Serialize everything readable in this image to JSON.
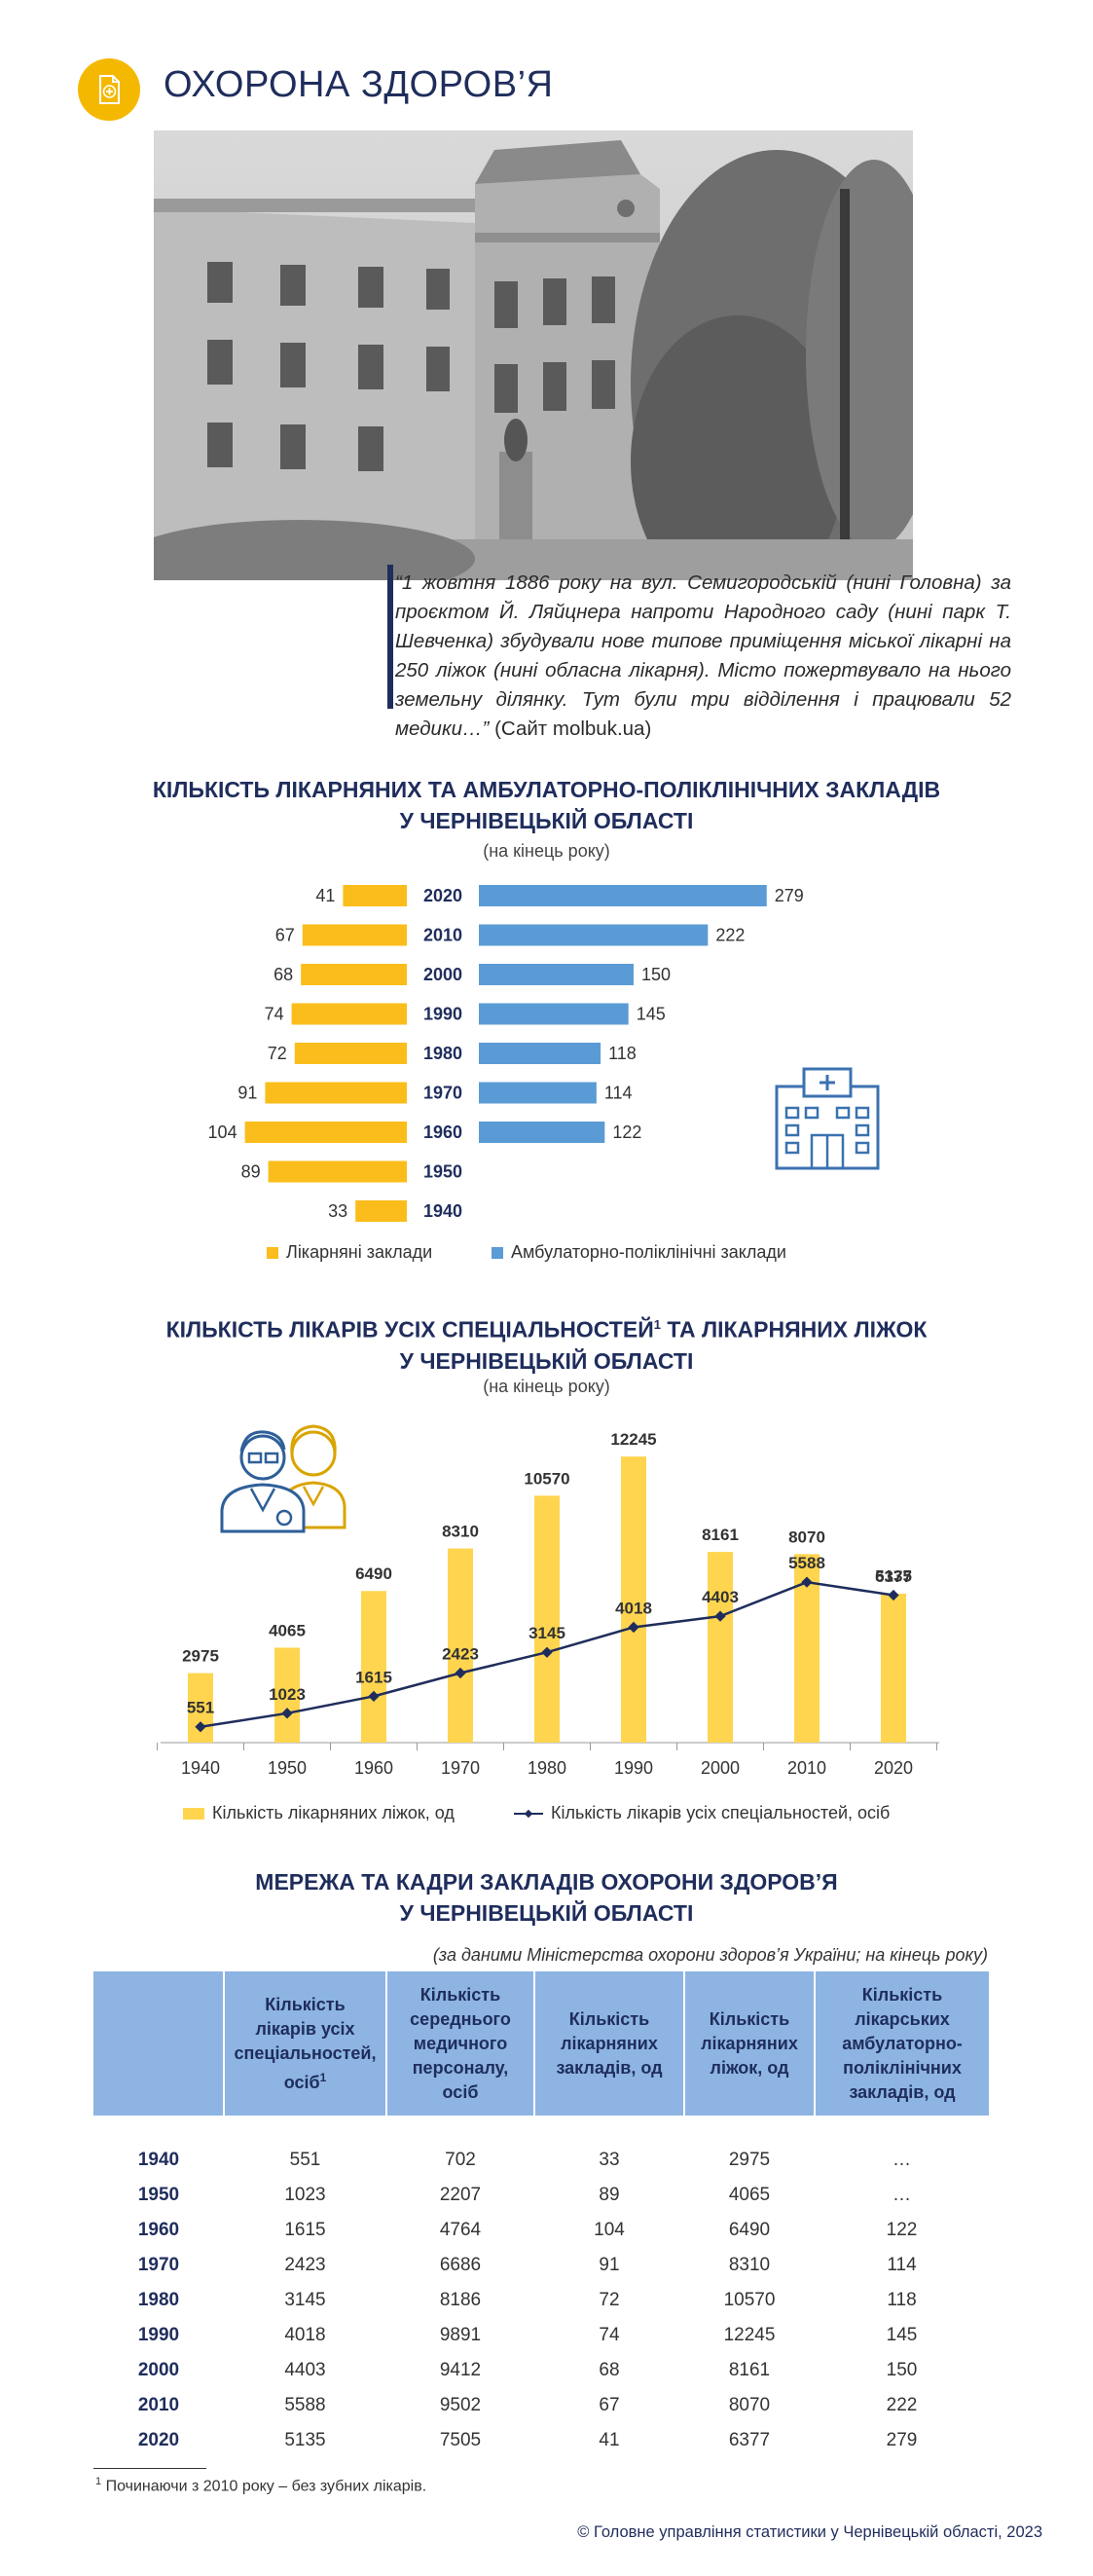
{
  "page": {
    "title": "ОХОРОНА ЗДОРОВ’Я",
    "icon": "medical-document-icon",
    "accent_color": "#f5b800",
    "navy_color": "#1f2d5c"
  },
  "quote": {
    "text": "“1 жовтня 1886 року на вул. Семигородській (нині Головна) за проєктом Й. Ляйцнера напроти Народного саду (нині парк Т. Шевченка) збудували нове типове приміщення міської лікарні на 250 ліжок (нині обласна лікарня). Місто пожертвувало на нього земельну ділянку. Тут були три відділення і працювали 52 медики…”",
    "source": "(Сайт molbuk.ua)"
  },
  "chart_data": [
    {
      "type": "bar",
      "orientation": "horizontal",
      "title": "КІЛЬКІСТЬ ЛІКАРНЯНИХ  ТА АМБУЛАТОРНО-ПОЛІКЛІНІЧНИХ ЗАКЛАДІВ",
      "title_line2": "У ЧЕРНІВЕЦЬКІЙ ОБЛАСТІ",
      "subtitle": "(на кінець року)",
      "categories": [
        "2020",
        "2010",
        "2000",
        "1990",
        "1980",
        "1970",
        "1960",
        "1950",
        "1940"
      ],
      "series": [
        {
          "name": "Лікарняні заклади",
          "color": "#fbbd1b",
          "values": [
            41,
            67,
            68,
            74,
            72,
            91,
            104,
            89,
            33
          ]
        },
        {
          "name": "Амбулаторно-поліклінічні  заклади",
          "color": "#5b9bd5",
          "values": [
            279,
            222,
            150,
            145,
            118,
            114,
            122,
            null,
            null
          ]
        }
      ],
      "legend_position": "bottom",
      "icon": "hospital-building-icon"
    },
    {
      "type": "bar",
      "title_parts": [
        "КІЛЬКІСТЬ ЛІКАРІВ УСІХ СПЕЦІАЛЬНОСТЕЙ",
        "1",
        " ТА ЛІКАРНЯНИХ ЛІЖОК"
      ],
      "title_line2": "У ЧЕРНІВЕЦЬКІЙ ОБЛАСТІ",
      "subtitle": "(на кінець року)",
      "categories": [
        "1940",
        "1950",
        "1960",
        "1970",
        "1980",
        "1990",
        "2000",
        "2010",
        "2020"
      ],
      "series": [
        {
          "name": "Кількість лікарняних ліжок, од",
          "type": "bar",
          "color": "#ffd54f",
          "values": [
            2975,
            4065,
            6490,
            8310,
            10570,
            12245,
            8161,
            8070,
            6377
          ]
        },
        {
          "name": "Кількість лікарів усіх спеціальностей, осіб",
          "type": "line",
          "color": "#1f2d5c",
          "values": [
            551,
            1023,
            1615,
            2423,
            3145,
            4018,
            4403,
            5588,
            5135
          ]
        }
      ],
      "legend_position": "bottom",
      "icon": "doctors-icon"
    }
  ],
  "table": {
    "title": "МЕРЕЖА ТА КАДРИ ЗАКЛАДІВ ОХОРОНИ ЗДОРОВ’Я",
    "title_line2": "У ЧЕРНІВЕЦЬКІЙ ОБЛАСТІ",
    "note": "(за даними Міністерства охорони здоров’я України; на кінець року)",
    "headers": [
      "",
      "Кількість лікарів усіх спеціальностей, осіб",
      "Кількість середнього медичного персоналу, осіб",
      "Кількість лікарняних закладів, од",
      "Кількість лікарняних ліжок, од",
      "Кількість лікарських амбулаторно-поліклінічних закладів, од"
    ],
    "header_sup": "1",
    "rows": [
      [
        "1940",
        "551",
        "702",
        "33",
        "2975",
        "…"
      ],
      [
        "1950",
        "1023",
        "2207",
        "89",
        "4065",
        "…"
      ],
      [
        "1960",
        "1615",
        "4764",
        "104",
        "6490",
        "122"
      ],
      [
        "1970",
        "2423",
        "6686",
        "91",
        "8310",
        "114"
      ],
      [
        "1980",
        "3145",
        "8186",
        "72",
        "10570",
        "118"
      ],
      [
        "1990",
        "4018",
        "9891",
        "74",
        "12245",
        "145"
      ],
      [
        "2000",
        "4403",
        "9412",
        "68",
        "8161",
        "150"
      ],
      [
        "2010",
        "5588",
        "9502",
        "67",
        "8070",
        "222"
      ],
      [
        "2020",
        "5135",
        "7505",
        "41",
        "6377",
        "279"
      ]
    ]
  },
  "footnote": {
    "sup": "1",
    "text": "Починаючи з 2010 року – без зубних лікарів."
  },
  "copyright": "© Головне управління статистики у Чернівецькій області, 2023"
}
